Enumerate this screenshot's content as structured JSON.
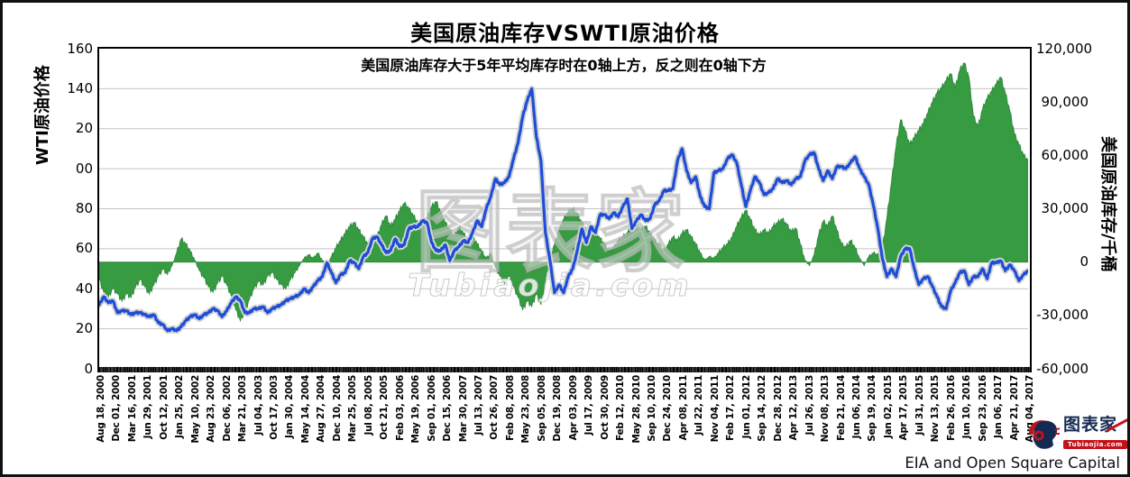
{
  "figure": {
    "title": "美国原油库存VSWTI原油价格",
    "subtitle": "美国原油库存大于5年平均库存时在0轴上方，反之则在0轴下方",
    "attribution": "EIA and Open Square Capital",
    "watermark": {
      "cn": "图表家",
      "en": "Tubiaojia.com"
    },
    "logo": {
      "brand": "图表家",
      "domain": "Tubiaojia.com"
    }
  },
  "chart_data": {
    "type": "combo-line-area",
    "title": "美国原油库存VSWTI原油价格",
    "subtitle": "美国原油库存大于5年平均库存时在0轴上方，反之则在0轴下方",
    "grid": "horizontal-only",
    "left_axis": {
      "title": "WTI原油价格",
      "range": [
        0,
        160
      ],
      "tick_values": [
        160,
        140,
        120,
        100,
        80,
        60,
        40,
        20,
        0
      ],
      "tick_labels_displayed": [
        "160",
        "140",
        "20",
        "00",
        "80",
        "60",
        "40",
        "20",
        "0"
      ]
    },
    "right_axis": {
      "title": "美国原油库存/千桶",
      "range": [
        -60000,
        120000
      ],
      "tick_values": [
        120000,
        90000,
        60000,
        30000,
        0,
        -30000,
        -60000
      ],
      "tick_labels": [
        "120,000",
        "90,000",
        "60,000",
        "30,000",
        "0",
        "-30,000",
        "-60,000"
      ]
    },
    "x_axis": {
      "tick_labels": [
        "Aug 18, 2000",
        "Dec 01, 2000",
        "Mar 16, 2001",
        "Jun 29, 2001",
        "Oct 12, 2001",
        "Jan 25, 2002",
        "May 10, 2002",
        "Aug 23, 2002",
        "Dec 06, 2002",
        "Mar 21, 2003",
        "Jul 04, 2003",
        "Oct 17, 2003",
        "Jan 30, 2004",
        "May 14, 2004",
        "Aug 27, 2004",
        "Dec 10, 2004",
        "Mar 25, 2005",
        "Jul 08, 2005",
        "Oct 21, 2005",
        "Feb 03, 2006",
        "May 19, 2006",
        "Sep 01, 2006",
        "Dec 15, 2006",
        "Mar 30, 2007",
        "Jul 13, 2007",
        "Oct 26, 2007",
        "Feb 08, 2008",
        "May 23, 2008",
        "Sep 05, 2008",
        "Dec 19, 2008",
        "Apr 03, 2009",
        "Jul 17, 2009",
        "Oct 30, 2009",
        "Feb 12, 2010",
        "May 28, 2010",
        "Sep 10, 2010",
        "Dec 24, 2010",
        "Apr 08, 2011",
        "Jul 22, 2011",
        "Nov 04, 2011",
        "Feb 17, 2012",
        "Jun 01, 2012",
        "Sep 14, 2012",
        "Dec 28, 2012",
        "Apr 12, 2013",
        "Jul 26, 2013",
        "Nov 08, 2013",
        "Feb 21, 2014",
        "Jun 06, 2014",
        "Sep 19, 2014",
        "Jan 02, 2015",
        "Apr 17, 2015",
        "Jul 31, 2015",
        "Nov 13, 2015",
        "Feb 26, 2016",
        "Jun 10, 2016",
        "Sep 23, 2016",
        "Jan 06, 2017",
        "Apr 21, 2017",
        "Aug 04, 2017"
      ]
    },
    "series": [
      {
        "name": "WTI原油价格",
        "type": "line",
        "axis": "left",
        "color": "#1e4ed8",
        "x_monthly_start": "2000-08",
        "x_monthly_end": "2017-08",
        "values": [
          32,
          36,
          33,
          34,
          28,
          29,
          29,
          27,
          28,
          28,
          27,
          26,
          27,
          23,
          22,
          19,
          20,
          19,
          21,
          24,
          26,
          27,
          25,
          27,
          28,
          30,
          29,
          26,
          29,
          33,
          36,
          34,
          28,
          28,
          30,
          30,
          31,
          28,
          30,
          31,
          32,
          34,
          35,
          36,
          37,
          40,
          38,
          41,
          44,
          46,
          53,
          48,
          43,
          47,
          48,
          54,
          53,
          50,
          56,
          58,
          65,
          66,
          62,
          58,
          59,
          65,
          61,
          62,
          70,
          71,
          71,
          74,
          73,
          63,
          59,
          59,
          62,
          54,
          59,
          61,
          64,
          63,
          68,
          74,
          71,
          80,
          86,
          95,
          92,
          93,
          96,
          105,
          113,
          126,
          134,
          140,
          116,
          104,
          68,
          54,
          38,
          42,
          38,
          46,
          50,
          59,
          70,
          63,
          71,
          68,
          77,
          77,
          75,
          78,
          76,
          81,
          85,
          70,
          74,
          77,
          74,
          75,
          82,
          84,
          89,
          89,
          90,
          104,
          110,
          99,
          93,
          96,
          86,
          81,
          80,
          98,
          99,
          100,
          105,
          107,
          103,
          92,
          81,
          89,
          96,
          93,
          87,
          88,
          90,
          95,
          93,
          94,
          92,
          95,
          96,
          104,
          107,
          108,
          100,
          94,
          99,
          95,
          101,
          101,
          100,
          103,
          106,
          100,
          96,
          92,
          82,
          70,
          55,
          46,
          50,
          46,
          56,
          60,
          60,
          50,
          42,
          45,
          46,
          41,
          36,
          31,
          30,
          39,
          43,
          48,
          49,
          42,
          46,
          46,
          50,
          45,
          53,
          53,
          54,
          49,
          52,
          49,
          44,
          47,
          49
        ]
      },
      {
        "name": "美国原油库存与5年平均库存之差",
        "type": "area",
        "axis": "right",
        "baseline": 0,
        "color": "#379b42",
        "x_monthly_start": "2000-08",
        "x_monthly_end": "2017-08",
        "values": [
          -10000,
          -17000,
          -20000,
          -15000,
          -18000,
          -22000,
          -18000,
          -20000,
          -14000,
          -10000,
          -14000,
          -18000,
          -13000,
          -8000,
          -4000,
          -7000,
          -2000,
          5000,
          13000,
          10000,
          6000,
          1000,
          -5000,
          -9000,
          -14000,
          -17000,
          -12000,
          -8000,
          -13000,
          -19000,
          -27000,
          -33000,
          -28000,
          -21000,
          -15000,
          -11000,
          -13000,
          -8000,
          -6000,
          -10000,
          -13000,
          -15000,
          -10000,
          -6000,
          -2000,
          2000,
          4000,
          2000,
          5000,
          1000,
          -2000,
          3000,
          8000,
          12000,
          16000,
          20000,
          22000,
          18000,
          14000,
          10000,
          8000,
          14000,
          21000,
          26000,
          20000,
          24000,
          29000,
          33000,
          30000,
          26000,
          22000,
          19000,
          25000,
          31000,
          34000,
          28000,
          22000,
          18000,
          14000,
          20000,
          16000,
          12000,
          15000,
          10000,
          6000,
          2000,
          5000,
          -3000,
          -8000,
          -12000,
          -8000,
          -14000,
          -20000,
          -27000,
          -22000,
          -25000,
          -18000,
          -24000,
          -10000,
          2000,
          10000,
          18000,
          24000,
          28000,
          30000,
          27000,
          22000,
          18000,
          14000,
          17000,
          13000,
          10000,
          6000,
          8000,
          12000,
          14000,
          16000,
          20000,
          22000,
          18000,
          20000,
          16000,
          12000,
          10000,
          6000,
          10000,
          14000,
          12000,
          16000,
          18000,
          14000,
          10000,
          5000,
          1000,
          3000,
          2000,
          5000,
          8000,
          10000,
          14000,
          20000,
          25000,
          29000,
          24000,
          18000,
          15000,
          18000,
          16000,
          20000,
          22000,
          24000,
          21000,
          17000,
          19000,
          10000,
          1000,
          -2000,
          4000,
          15000,
          23000,
          20000,
          26000,
          18000,
          10000,
          8000,
          12000,
          8000,
          2000,
          -2000,
          3000,
          5000,
          4000,
          8000,
          25000,
          45000,
          65000,
          80000,
          74000,
          66000,
          70000,
          74000,
          78000,
          84000,
          90000,
          95000,
          98000,
          102000,
          106000,
          98000,
          108000,
          112000,
          104000,
          82000,
          76000,
          86000,
          92000,
          96000,
          100000,
          104000,
          95000,
          85000,
          72000,
          66000,
          60000,
          57000
        ]
      }
    ]
  },
  "colors": {
    "line": "#1e4ed8",
    "line_glow": "#d4d4d4",
    "area": "#379b42",
    "area_edge": "#2b8538",
    "gridline": "#c4c4c4",
    "axis": "#000000",
    "logo_navy": "#152a52",
    "logo_red": "#c4121a"
  }
}
